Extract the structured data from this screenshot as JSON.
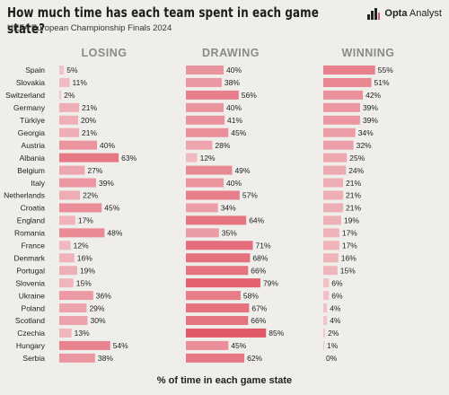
{
  "header": {
    "title": "How much time has each team spent in each game state?",
    "subtitle": "UEFA European Championship Finals 2024",
    "brand_name": "Opta",
    "brand_suffix": " Analyst"
  },
  "chart_data": {
    "type": "bar",
    "orientation": "horizontal",
    "title": "How much time has each team spent in each game state?",
    "subtitle": "UEFA European Championship Finals 2024",
    "xlabel": "% of time in each game state",
    "categories": [
      "Spain",
      "Slovakia",
      "Switzerland",
      "Germany",
      "Türkiye",
      "Georgia",
      "Austria",
      "Albania",
      "Belgium",
      "Italy",
      "Netherlands",
      "Croatia",
      "England",
      "Romania",
      "France",
      "Denmark",
      "Portugal",
      "Slovenia",
      "Ukraine",
      "Poland",
      "Scotland",
      "Czechia",
      "Hungary",
      "Serbia"
    ],
    "series": [
      {
        "name": "LOSING",
        "values": [
          5,
          11,
          2,
          21,
          20,
          21,
          40,
          63,
          27,
          39,
          22,
          45,
          17,
          48,
          12,
          16,
          19,
          15,
          36,
          29,
          30,
          13,
          54,
          38
        ]
      },
      {
        "name": "DRAWING",
        "values": [
          40,
          38,
          56,
          40,
          41,
          45,
          28,
          12,
          49,
          40,
          57,
          34,
          64,
          35,
          71,
          68,
          66,
          79,
          58,
          67,
          66,
          85,
          45,
          62
        ]
      },
      {
        "name": "WINNING",
        "values": [
          55,
          51,
          42,
          39,
          39,
          34,
          32,
          25,
          24,
          21,
          21,
          21,
          19,
          17,
          17,
          16,
          15,
          6,
          6,
          4,
          4,
          2,
          1,
          0
        ]
      }
    ],
    "xlim": [
      0,
      100
    ],
    "label_suffix": "%",
    "colors": {
      "low": "#f2c9cd",
      "high": "#e25a6a"
    }
  }
}
